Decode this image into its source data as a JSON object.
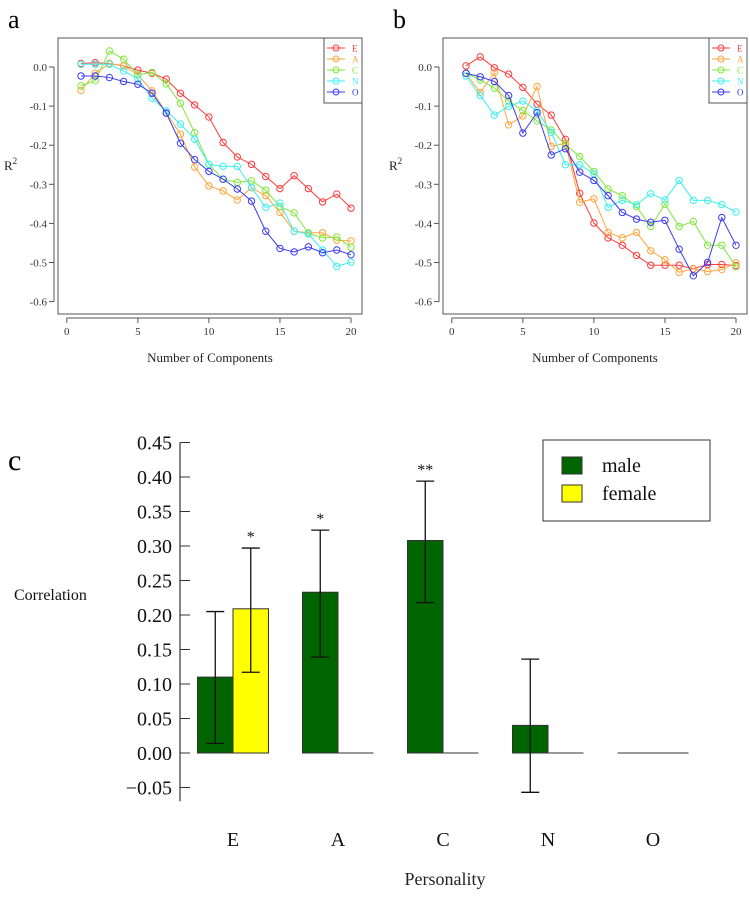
{
  "chart_data": [
    {
      "panel_label": "a",
      "type": "line",
      "xlabel": "Number of Components",
      "ylabel": "R",
      "ylabel_superscript": "2",
      "xlim": [
        0,
        20
      ],
      "ylim": [
        -0.65,
        0.05
      ],
      "x_ticks": [
        "0",
        "5",
        "10",
        "15",
        "20"
      ],
      "y_ticks": [
        "0.0",
        "-0.1",
        "-0.2",
        "-0.3",
        "-0.4",
        "-0.5",
        "-0.6"
      ],
      "legend_position": "top-right",
      "grid": false,
      "x": [
        1,
        2,
        3,
        4,
        5,
        6,
        7,
        8,
        9,
        10,
        11,
        12,
        13,
        14,
        15,
        16,
        17,
        18,
        19,
        20
      ],
      "series": [
        {
          "name": "E",
          "color": "#ff3b3b",
          "values": [
            0.009,
            0.011,
            0.009,
            0.003,
            -0.008,
            -0.016,
            -0.031,
            -0.067,
            -0.097,
            -0.128,
            -0.193,
            -0.23,
            -0.249,
            -0.28,
            -0.311,
            -0.278,
            -0.311,
            -0.345,
            -0.325,
            -0.361
          ]
        },
        {
          "name": "A",
          "color": "#ffa53b",
          "values": [
            -0.06,
            -0.016,
            0.009,
            0.003,
            -0.02,
            -0.061,
            -0.117,
            -0.172,
            -0.256,
            -0.304,
            -0.317,
            -0.34,
            -0.309,
            -0.329,
            -0.372,
            -0.42,
            -0.424,
            -0.424,
            -0.443,
            -0.445
          ]
        },
        {
          "name": "C",
          "color": "#7fe83b",
          "values": [
            -0.048,
            -0.035,
            0.041,
            0.02,
            -0.02,
            -0.014,
            -0.043,
            -0.093,
            -0.168,
            -0.249,
            -0.287,
            -0.295,
            -0.291,
            -0.315,
            -0.357,
            -0.373,
            -0.425,
            -0.437,
            -0.435,
            -0.461
          ]
        },
        {
          "name": "N",
          "color": "#3bf0f0",
          "values": [
            0.007,
            0.007,
            0.007,
            -0.01,
            -0.031,
            -0.08,
            -0.112,
            -0.146,
            -0.185,
            -0.249,
            -0.254,
            -0.254,
            -0.308,
            -0.359,
            -0.348,
            -0.42,
            -0.427,
            -0.468,
            -0.51,
            -0.499
          ]
        },
        {
          "name": "O",
          "color": "#3b3bf0",
          "values": [
            -0.023,
            -0.023,
            -0.027,
            -0.037,
            -0.044,
            -0.067,
            -0.118,
            -0.195,
            -0.237,
            -0.267,
            -0.287,
            -0.312,
            -0.343,
            -0.42,
            -0.464,
            -0.473,
            -0.46,
            -0.475,
            -0.468,
            -0.48
          ]
        }
      ]
    },
    {
      "panel_label": "b",
      "type": "line",
      "xlabel": "Number of Components",
      "ylabel": "R",
      "ylabel_superscript": "2",
      "xlim": [
        0,
        20
      ],
      "ylim": [
        -0.65,
        0.05
      ],
      "x_ticks": [
        "0",
        "5",
        "10",
        "15",
        "20"
      ],
      "y_ticks": [
        "0.0",
        "-0.1",
        "-0.2",
        "-0.3",
        "-0.4",
        "-0.5",
        "-0.6"
      ],
      "legend_position": "top-right",
      "grid": false,
      "x": [
        1,
        2,
        3,
        4,
        5,
        6,
        7,
        8,
        9,
        10,
        11,
        12,
        13,
        14,
        15,
        16,
        17,
        18,
        19,
        20
      ],
      "series": [
        {
          "name": "E",
          "color": "#ff3b3b",
          "values": [
            0.003,
            0.026,
            -0.002,
            -0.018,
            -0.052,
            -0.095,
            -0.123,
            -0.185,
            -0.323,
            -0.399,
            -0.437,
            -0.456,
            -0.482,
            -0.507,
            -0.507,
            -0.507,
            -0.516,
            -0.505,
            -0.505,
            -0.508
          ]
        },
        {
          "name": "A",
          "color": "#ffa53b",
          "values": [
            -0.016,
            -0.065,
            -0.014,
            -0.148,
            -0.125,
            -0.05,
            -0.203,
            -0.195,
            -0.346,
            -0.337,
            -0.423,
            -0.437,
            -0.423,
            -0.47,
            -0.493,
            -0.525,
            -0.516,
            -0.523,
            -0.518,
            -0.501
          ]
        },
        {
          "name": "C",
          "color": "#7fe83b",
          "values": [
            -0.016,
            -0.033,
            -0.054,
            -0.087,
            -0.111,
            -0.138,
            -0.161,
            -0.199,
            -0.229,
            -0.267,
            -0.312,
            -0.329,
            -0.357,
            -0.408,
            -0.351,
            -0.408,
            -0.395,
            -0.456,
            -0.456,
            -0.511
          ]
        },
        {
          "name": "N",
          "color": "#3bf0f0",
          "values": [
            -0.023,
            -0.073,
            -0.123,
            -0.101,
            -0.087,
            -0.112,
            -0.167,
            -0.25,
            -0.25,
            -0.273,
            -0.359,
            -0.341,
            -0.352,
            -0.324,
            -0.34,
            -0.29,
            -0.341,
            -0.341,
            -0.352,
            -0.371
          ]
        },
        {
          "name": "O",
          "color": "#3b3bf0",
          "values": [
            -0.016,
            -0.025,
            -0.037,
            -0.073,
            -0.169,
            -0.117,
            -0.225,
            -0.209,
            -0.269,
            -0.29,
            -0.329,
            -0.372,
            -0.389,
            -0.397,
            -0.392,
            -0.466,
            -0.534,
            -0.5,
            -0.385,
            -0.456
          ]
        }
      ]
    },
    {
      "panel_label": "c",
      "type": "bar",
      "xlabel": "Personality",
      "ylabel": "Correlation",
      "categories": [
        "E",
        "A",
        "C",
        "N",
        "O"
      ],
      "ylim": [
        -0.05,
        0.45
      ],
      "y_ticks": [
        "0.45",
        "0.40",
        "0.35",
        "0.30",
        "0.25",
        "0.20",
        "0.15",
        "0.10",
        "0.05",
        "0.00",
        "−0.05"
      ],
      "legend_position": "top-right",
      "grid": false,
      "series": [
        {
          "name": "male",
          "color": "#006400",
          "values": [
            0.11,
            0.233,
            0.308,
            0.04,
            0.0
          ],
          "error_low": [
            0.014,
            0.139,
            0.218,
            -0.057,
            null
          ],
          "error_high": [
            0.205,
            0.323,
            0.394,
            0.136,
            null
          ],
          "significance": [
            "",
            "*",
            "**",
            "",
            ""
          ]
        },
        {
          "name": "female",
          "color": "#ffff00",
          "values": [
            0.209,
            0.0,
            0.0,
            0.0,
            0.0
          ],
          "error_low": [
            0.117,
            null,
            null,
            null,
            null
          ],
          "error_high": [
            0.297,
            null,
            null,
            null,
            null
          ],
          "significance": [
            "*",
            "",
            "",
            "",
            ""
          ]
        }
      ]
    }
  ]
}
